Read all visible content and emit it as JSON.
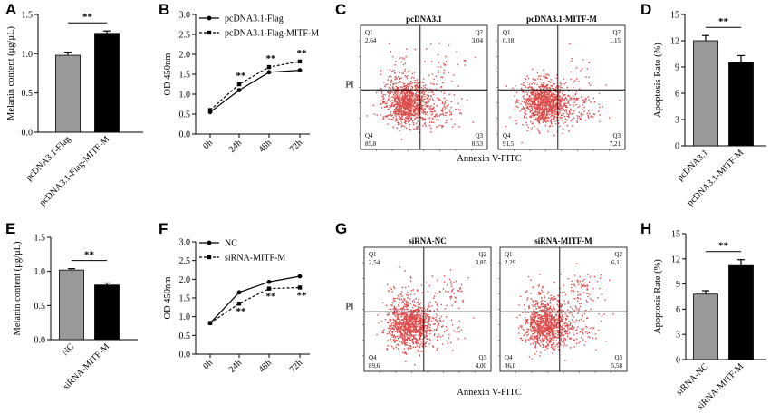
{
  "panel_letters": [
    "A",
    "B",
    "C",
    "D",
    "E",
    "F",
    "G",
    "H"
  ],
  "chart_data": [
    {
      "panel": "A",
      "type": "bar",
      "categories": [
        "pcDNA3.1-Flag",
        "pcDNA3.1-Flag-MITF-M"
      ],
      "values": [
        0.98,
        1.26
      ],
      "errors": [
        0.04,
        0.03
      ],
      "colors": [
        "#999999",
        "#000000"
      ],
      "ylabel": "Melanin content (μg/μL)",
      "ylim": [
        0,
        1.5
      ],
      "yticks": [
        "0.0",
        "0.5",
        "1.0",
        "1.5"
      ],
      "annotation": "**"
    },
    {
      "panel": "B",
      "type": "line",
      "x": [
        "0h",
        "24h",
        "48h",
        "72h"
      ],
      "series": [
        {
          "name": "pcDNA3.1-Flag",
          "values": [
            0.55,
            1.1,
            1.55,
            1.6
          ],
          "dashed": false
        },
        {
          "name": "pcDNA3.1-Flag-MITF-M",
          "values": [
            0.6,
            1.25,
            1.68,
            1.82
          ],
          "dashed": true
        }
      ],
      "ylabel": "OD 450nm",
      "ylim": [
        0,
        3.0
      ],
      "yticks": [
        "0.0",
        "0.5",
        "1.0",
        "1.5",
        "2.0",
        "2.5",
        "3.0"
      ],
      "annotations": [
        "**",
        "**",
        "**"
      ]
    },
    {
      "panel": "C",
      "type": "scatter",
      "plots": [
        {
          "title": "pcDNA3.1",
          "quadrants": {
            "Q1": "2,64",
            "Q2": "3,04",
            "Q3": "8,53",
            "Q4": "85,8"
          }
        },
        {
          "title": "pcDNA3.1-MITF-M",
          "quadrants": {
            "Q1": "0,18",
            "Q2": "1,15",
            "Q3": "7,21",
            "Q4": "91,5"
          }
        }
      ],
      "quadrant_names": [
        "Q1",
        "Q2",
        "Q3",
        "Q4"
      ],
      "xlabel": "Annexin V-FITC",
      "ylabel": "PI"
    },
    {
      "panel": "D",
      "type": "bar",
      "categories": [
        "pcDNA3.1",
        "pcDNA3.1-MITF-M"
      ],
      "values": [
        12.0,
        9.5
      ],
      "errors": [
        0.6,
        0.8
      ],
      "colors": [
        "#999999",
        "#000000"
      ],
      "ylabel": "Apoptosis Rate (%)",
      "ylim": [
        0,
        15
      ],
      "yticks": [
        "0",
        "3",
        "6",
        "9",
        "12",
        "15"
      ],
      "annotation": "**"
    },
    {
      "panel": "E",
      "type": "bar",
      "categories": [
        "NC",
        "siRNA-MITF-M"
      ],
      "values": [
        1.02,
        0.8
      ],
      "errors": [
        0.02,
        0.03
      ],
      "colors": [
        "#999999",
        "#000000"
      ],
      "ylabel": "Melanin content (μg/μL)",
      "ylim": [
        0,
        1.5
      ],
      "yticks": [
        "0.0",
        "0.5",
        "1.0",
        "1.5"
      ],
      "annotation": "**"
    },
    {
      "panel": "F",
      "type": "line",
      "x": [
        "0h",
        "24h",
        "48h",
        "72h"
      ],
      "series": [
        {
          "name": "NC",
          "values": [
            0.83,
            1.65,
            1.93,
            2.08
          ],
          "dashed": false
        },
        {
          "name": "siRNA-MITF-M",
          "values": [
            0.83,
            1.35,
            1.75,
            1.78
          ],
          "dashed": true
        }
      ],
      "ylabel": "OD 450nm",
      "ylim": [
        0,
        3.0
      ],
      "yticks": [
        "0.0",
        "0.5",
        "1.0",
        "1.5",
        "2.0",
        "2.5",
        "3.0"
      ],
      "annotations": [
        "**",
        "**",
        "**"
      ]
    },
    {
      "panel": "G",
      "type": "scatter",
      "plots": [
        {
          "title": "siRNA-NC",
          "quadrants": {
            "Q1": "2,54",
            "Q2": "3,85",
            "Q3": "4,00",
            "Q4": "89,6"
          }
        },
        {
          "title": "siRNA-MITF-M",
          "quadrants": {
            "Q1": "2,29",
            "Q2": "6,11",
            "Q3": "5,58",
            "Q4": "86,0"
          }
        }
      ],
      "quadrant_names": [
        "Q1",
        "Q2",
        "Q3",
        "Q4"
      ],
      "xlabel": "Annexin V-FITC",
      "ylabel": "PI"
    },
    {
      "panel": "H",
      "type": "bar",
      "categories": [
        "siRNA-NC",
        "siRNA-MITF-M"
      ],
      "values": [
        7.8,
        11.2
      ],
      "errors": [
        0.4,
        0.7
      ],
      "colors": [
        "#999999",
        "#000000"
      ],
      "ylabel": "Apoptosis Rate (%)",
      "ylim": [
        0,
        15
      ],
      "yticks": [
        "0",
        "3",
        "6",
        "9",
        "12",
        "15"
      ],
      "annotation": "**"
    }
  ]
}
